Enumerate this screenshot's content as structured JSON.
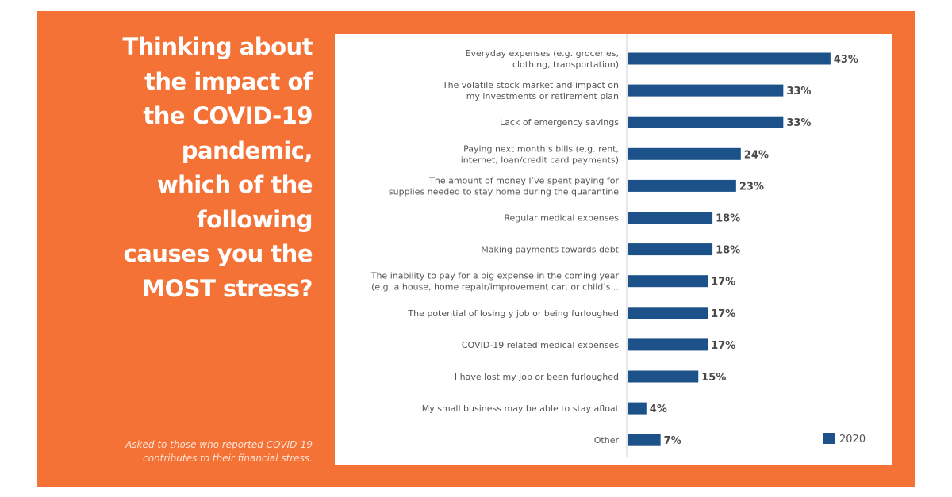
{
  "question": "Thinking about\nthe impact of\nthe COVID-19\npandemic,\nwhich of the\nfollowing\ncauses you the\nMOST stress?",
  "footnote": "Asked to those who reported COVID-19\ncontributes to their financial stress.",
  "colors": {
    "background": "#f47236",
    "bar": "#1c5189",
    "card": "#ffffff"
  },
  "chart_data": {
    "type": "bar",
    "orientation": "horizontal",
    "categories": [
      [
        "Everyday expenses (e.g. groceries,",
        "clothing, transportation)"
      ],
      [
        "The volatile stock market and impact on",
        "my investments or retirement plan"
      ],
      [
        "Lack of emergency savings"
      ],
      [
        "Paying next month’s bills (e.g. rent,",
        "internet, loan/credit card payments)"
      ],
      [
        "The amount of money I’ve spent paying for",
        "supplies needed to stay home during the quarantine"
      ],
      [
        "Regular medical expenses"
      ],
      [
        "Making payments towards debt"
      ],
      [
        "The inability to pay for a big expense in the coming year",
        "(e.g. a house, home repair/improvement car, or child’s..."
      ],
      [
        "The potential of losing y job or being furloughed"
      ],
      [
        "COVID-19 related medical expenses"
      ],
      [
        "I have lost my job or been furloughed"
      ],
      [
        "My small business may be able to stay afloat"
      ],
      [
        "Other"
      ]
    ],
    "series": [
      {
        "name": "2020",
        "values": [
          43,
          33,
          33,
          24,
          23,
          18,
          18,
          17,
          17,
          17,
          15,
          4,
          7
        ]
      }
    ],
    "value_labels": [
      "43%",
      "33%",
      "33%",
      "24%",
      "23%",
      "18%",
      "18%",
      "17%",
      "17%",
      "17%",
      "15%",
      "4%",
      "7%"
    ],
    "xlim": [
      0,
      50
    ],
    "unit": "%",
    "legend": {
      "position": "bottom-right",
      "entries": [
        "2020"
      ]
    },
    "grid": false
  }
}
